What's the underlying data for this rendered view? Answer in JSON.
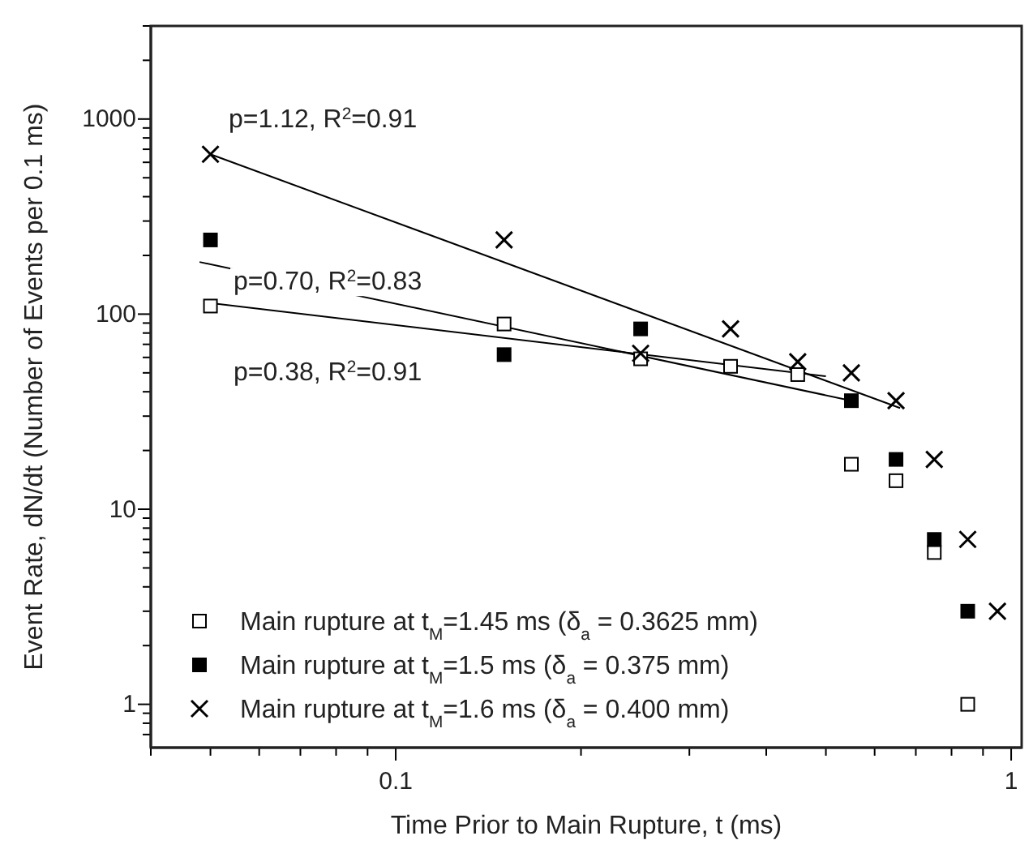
{
  "chart_data": {
    "type": "scatter",
    "xlabel": "Time Prior to Main Rupture, t (ms)",
    "ylabel": "Event Rate, dN/dt (Number of Events per 0.1 ms)",
    "log": "xy",
    "grid": false,
    "legend": "bottom left",
    "xlim": [
      0.04,
      1.04
    ],
    "ylim": [
      0.6,
      3000
    ],
    "xticks": [
      {
        "value": 0.04,
        "label": null
      },
      {
        "value": 0.05,
        "label": null
      },
      {
        "value": 0.06,
        "label": null
      },
      {
        "value": 0.07,
        "label": null
      },
      {
        "value": 0.08,
        "label": null
      },
      {
        "value": 0.09,
        "label": null
      },
      0.1,
      {
        "value": 0.2,
        "label": null
      },
      {
        "value": 0.3,
        "label": null
      },
      {
        "value": 0.4,
        "label": null
      },
      {
        "value": 0.5,
        "label": null
      },
      {
        "value": 0.6,
        "label": null
      },
      {
        "value": 0.7,
        "label": null
      },
      {
        "value": 0.8,
        "label": null
      },
      {
        "value": 0.9,
        "label": null
      },
      1
    ],
    "yticks": [
      {
        "value": 0.7,
        "label": null
      },
      {
        "value": 0.8,
        "label": null
      },
      {
        "value": 0.9,
        "label": null
      },
      1,
      {
        "value": 2,
        "label": null
      },
      {
        "value": 3,
        "label": null
      },
      {
        "value": 4,
        "label": null
      },
      {
        "value": 5,
        "label": null
      },
      {
        "value": 6,
        "label": null
      },
      {
        "value": 7,
        "label": null
      },
      {
        "value": 8,
        "label": null
      },
      {
        "value": 9,
        "label": null
      },
      10,
      {
        "value": 20,
        "label": null
      },
      {
        "value": 30,
        "label": null
      },
      {
        "value": 40,
        "label": null
      },
      {
        "value": 50,
        "label": null
      },
      {
        "value": 60,
        "label": null
      },
      {
        "value": 70,
        "label": null
      },
      {
        "value": 80,
        "label": null
      },
      {
        "value": 90,
        "label": null
      },
      100,
      {
        "value": 200,
        "label": null
      },
      {
        "value": 300,
        "label": null
      },
      {
        "value": 400,
        "label": null
      },
      {
        "value": 500,
        "label": null
      },
      {
        "value": 600,
        "label": null
      },
      {
        "value": 700,
        "label": null
      },
      {
        "value": 800,
        "label": null
      },
      {
        "value": 900,
        "label": null
      },
      1000,
      {
        "value": 2000,
        "label": null
      },
      {
        "value": 3000,
        "label": null
      }
    ],
    "series": [
      {
        "type": "line",
        "x": [
          0.05,
          0.5
        ],
        "values": [
          114,
          48
        ],
        "color": "#000000",
        "marker": "none"
      },
      {
        "type": "line",
        "x": [
          0.048,
          0.55
        ],
        "values": [
          185,
          36
        ],
        "color": "#000000",
        "marker": "none"
      },
      {
        "type": "line",
        "x": [
          0.05,
          0.66
        ],
        "values": [
          660,
          33
        ],
        "color": "#000000",
        "marker": "none"
      },
      {
        "name": "Main rupture at t$_{M}$=1.45 ms (δ$_{a}$ = 0.3625 mm)",
        "color": "#ffffff",
        "marker": "square",
        "x": [
          0.05,
          0.15,
          0.25,
          0.35,
          0.45,
          0.55,
          0.65,
          0.75,
          0.85
        ],
        "values": [
          110,
          89,
          59,
          54,
          49,
          17,
          14,
          6,
          1
        ]
      },
      {
        "name": "Main rupture at t$_{M}$=1.5 ms (δ$_{a}$ = 0.375 mm)",
        "color": "#000000",
        "marker": "square",
        "x": [
          0.05,
          0.15,
          0.25,
          0.55,
          0.65,
          0.75,
          0.85
        ],
        "values": [
          240,
          62,
          84,
          36,
          18,
          7,
          3
        ]
      },
      {
        "name": "Main rupture at t$_{M}$=1.6 ms (δ$_{a}$ = 0.400 mm)",
        "color": "#000000",
        "marker": "cross",
        "x": [
          0.05,
          0.15,
          0.25,
          0.35,
          0.45,
          0.55,
          0.65,
          0.75,
          0.85,
          0.95
        ],
        "values": [
          660,
          240,
          63,
          84,
          57,
          50,
          36,
          18,
          7,
          3
        ]
      }
    ],
    "annotations": [
      "p=1.12, R$^{2}$=0.91",
      "p=0.70, R$^{2}$=0.83",
      "p=0.38, R$^{2}$=0.91"
    ]
  }
}
